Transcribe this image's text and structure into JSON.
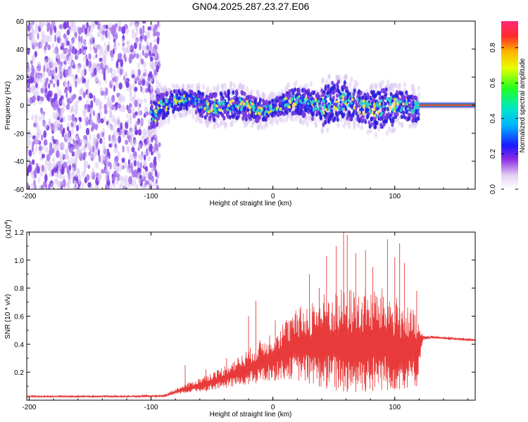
{
  "title": "GN04.2025.287.23.27.E06",
  "colors": {
    "spectro_low": "#d9c6f2",
    "spectro_mid": "#7a3ce0",
    "spectro_hi_a": "#1a2cff",
    "spectro_hi_b": "#2bd3c8",
    "spectro_hi_c": "#f0e23a",
    "trace": "#e83a3a",
    "track": "#f05a5a"
  },
  "chart_data": [
    {
      "type": "heatmap",
      "name": "spectrogram",
      "xlabel": "Height of straight line (km)",
      "ylabel": "Frequency (Hz)",
      "xlim": [
        -202,
        166
      ],
      "ylim": [
        -60,
        60
      ],
      "xticks": [
        -200,
        -100,
        0,
        100
      ],
      "yticks": [
        -60,
        -40,
        -20,
        0,
        20,
        40,
        60
      ],
      "noise_region_x": [
        -202,
        -93
      ],
      "signal_region_x": [
        -100,
        120
      ],
      "signal_band_hz": [
        -15,
        15
      ],
      "carrier_line": {
        "x": [
          120,
          166
        ],
        "y": 0
      },
      "colorbar": {
        "label": "Normalized spectral amplitude",
        "range": [
          0,
          0.95
        ],
        "ticks": [
          0.0,
          0.2,
          0.4,
          0.6,
          0.8
        ],
        "tick_labels": [
          "0.0",
          "0.2",
          "0.4",
          "0.6",
          "0.8"
        ]
      }
    },
    {
      "type": "line",
      "name": "snr",
      "xlabel": "Height of straight line (km)",
      "ylabel": "SNR (10 * v/v)",
      "scale_label": "(x10",
      "scale_exp": "4",
      "scale_close": ")",
      "xlim": [
        -202,
        166
      ],
      "ylim": [
        0,
        1.2
      ],
      "xticks": [
        -200,
        -100,
        0,
        100
      ],
      "yticks": [
        0.2,
        0.4,
        0.6,
        0.8,
        1.0,
        1.2
      ],
      "ytick_labels": [
        "0.2",
        "0.4",
        "0.6",
        "0.8",
        "1.0",
        "1.2"
      ],
      "series": [
        {
          "name": "SNR",
          "envelope": {
            "x": [
              -202,
              -120,
              -90,
              -85,
              -75,
              -60,
              -45,
              -30,
              -15,
              0,
              15,
              30,
              45,
              60,
              75,
              90,
              105,
              118,
              123,
              130,
              166
            ],
            "base": [
              0.02,
              0.02,
              0.02,
              0.03,
              0.05,
              0.06,
              0.08,
              0.1,
              0.12,
              0.14,
              0.15,
              0.12,
              0.08,
              0.06,
              0.06,
              0.07,
              0.08,
              0.1,
              0.43,
              0.44,
              0.42
            ],
            "peak": [
              0.035,
              0.035,
              0.04,
              0.06,
              0.1,
              0.16,
              0.22,
              0.3,
              0.4,
              0.5,
              0.62,
              0.72,
              0.78,
              0.8,
              0.8,
              0.8,
              0.72,
              0.62,
              0.46,
              0.46,
              0.44
            ]
          },
          "spikes": [
            {
              "x": -72,
              "y": 0.25
            },
            {
              "x": -55,
              "y": 0.22
            },
            {
              "x": -38,
              "y": 0.3
            },
            {
              "x": -20,
              "y": 0.6
            },
            {
              "x": -14,
              "y": 0.71
            },
            {
              "x": 2,
              "y": 0.57
            },
            {
              "x": 30,
              "y": 0.9
            },
            {
              "x": 38,
              "y": 0.8
            },
            {
              "x": 44,
              "y": 1.03
            },
            {
              "x": 52,
              "y": 1.1
            },
            {
              "x": 58,
              "y": 1.2
            },
            {
              "x": 61,
              "y": 1.18
            },
            {
              "x": 68,
              "y": 1.05
            },
            {
              "x": 76,
              "y": 1.07
            },
            {
              "x": 82,
              "y": 0.95
            },
            {
              "x": 94,
              "y": 1.15
            },
            {
              "x": 100,
              "y": 1.02
            },
            {
              "x": 104,
              "y": 1.12
            },
            {
              "x": 108,
              "y": 0.98
            },
            {
              "x": 118,
              "y": 0.78
            }
          ]
        }
      ]
    }
  ]
}
